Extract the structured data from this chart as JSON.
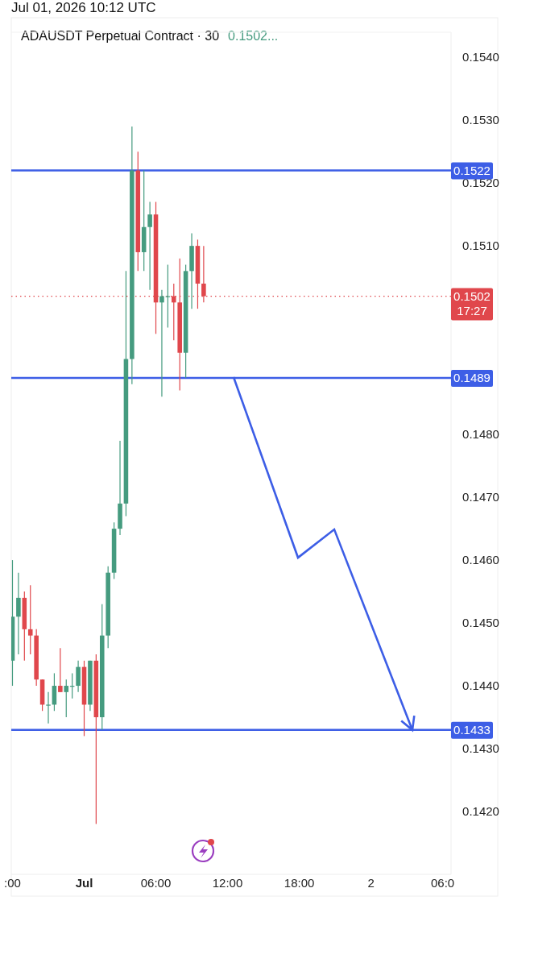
{
  "chart_data": {
    "type": "candlestick",
    "title": "Jul 01, 2026 10:12 UTC",
    "subtitle": "ADAUSDT Perpetual Contract · 30",
    "annotations": [
      "0.1502..."
    ],
    "x": [
      "2026-06-30T18:00",
      "2026-06-30T18:30",
      "2026-06-30T19:00",
      "2026-06-30T19:30",
      "2026-06-30T20:00",
      "2026-06-30T20:30",
      "2026-06-30T21:00",
      "2026-06-30T21:30",
      "2026-06-30T22:00",
      "2026-06-30T22:30",
      "2026-06-30T23:00",
      "2026-06-30T23:30",
      "2026-07-01T00:00",
      "2026-07-01T00:30",
      "2026-07-01T01:00",
      "2026-07-01T01:30",
      "2026-07-01T02:00",
      "2026-07-01T02:30",
      "2026-07-01T03:00",
      "2026-07-01T03:30",
      "2026-07-01T04:00",
      "2026-07-01T04:30",
      "2026-07-01T05:00",
      "2026-07-01T05:30",
      "2026-07-01T06:00",
      "2026-07-01T06:30",
      "2026-07-01T07:00",
      "2026-07-01T07:30",
      "2026-07-01T08:00",
      "2026-07-01T08:30",
      "2026-07-01T09:00",
      "2026-07-01T09:30",
      "2026-07-01T10:00"
    ],
    "ohlc": [
      [
        0.1444,
        0.146,
        0.144,
        0.1451
      ],
      [
        0.1451,
        0.1458,
        0.1445,
        0.1454
      ],
      [
        0.1454,
        0.1455,
        0.1444,
        0.1449
      ],
      [
        0.1449,
        0.1456,
        0.1445,
        0.1448
      ],
      [
        0.1448,
        0.1449,
        0.144,
        0.1441
      ],
      [
        0.1441,
        0.1441,
        0.1436,
        0.1437
      ],
      [
        0.1437,
        0.1439,
        0.1434,
        0.1437
      ],
      [
        0.1437,
        0.1442,
        0.1436,
        0.144
      ],
      [
        0.144,
        0.1446,
        0.1439,
        0.1439
      ],
      [
        0.1439,
        0.1441,
        0.1435,
        0.144
      ],
      [
        0.144,
        0.1442,
        0.1438,
        0.144
      ],
      [
        0.144,
        0.1444,
        0.1439,
        0.1443
      ],
      [
        0.1443,
        0.1444,
        0.1432,
        0.1437
      ],
      [
        0.1437,
        0.1444,
        0.1436,
        0.1444
      ],
      [
        0.1444,
        0.1445,
        0.1418,
        0.1435
      ],
      [
        0.1435,
        0.1453,
        0.1433,
        0.1448
      ],
      [
        0.1448,
        0.1459,
        0.1446,
        0.1458
      ],
      [
        0.1458,
        0.1466,
        0.1457,
        0.1465
      ],
      [
        0.1465,
        0.1479,
        0.1464,
        0.1469
      ],
      [
        0.1469,
        0.1506,
        0.1467,
        0.1492
      ],
      [
        0.1492,
        0.1529,
        0.1488,
        0.1522
      ],
      [
        0.1522,
        0.1525,
        0.1506,
        0.1509
      ],
      [
        0.1509,
        0.1522,
        0.1506,
        0.1513
      ],
      [
        0.1513,
        0.1517,
        0.1503,
        0.1515
      ],
      [
        0.1515,
        0.1517,
        0.1496,
        0.1501
      ],
      [
        0.1501,
        0.1503,
        0.1486,
        0.1502
      ],
      [
        0.1502,
        0.1507,
        0.1497,
        0.1502
      ],
      [
        0.1502,
        0.1504,
        0.1495,
        0.1501
      ],
      [
        0.1501,
        0.1508,
        0.1487,
        0.1493
      ],
      [
        0.1493,
        0.1507,
        0.1489,
        0.1506
      ],
      [
        0.1506,
        0.1512,
        0.15,
        0.151
      ],
      [
        0.151,
        0.1511,
        0.15,
        0.1504
      ],
      [
        0.1504,
        0.151,
        0.1501,
        0.1502
      ]
    ],
    "ref_lines": [
      {
        "axis": "y",
        "value": 0.1522,
        "label": "0.1522",
        "color": "#3d5ee6",
        "line_style": "solid"
      },
      {
        "axis": "y",
        "value": 0.1489,
        "label": "0.1489",
        "color": "#3d5ee6",
        "line_style": "solid"
      },
      {
        "axis": "y",
        "value": 0.1433,
        "label": "0.1433",
        "color": "#3d5ee6",
        "line_style": "solid"
      },
      {
        "axis": "y",
        "value": 0.1502,
        "label": "0.1502 17:27",
        "color": "#e0474c",
        "line_style": "dotted"
      }
    ],
    "xlim": [
      "2026-06-30T17:54",
      "2026-07-02T06:42"
    ],
    "xticks": [
      {
        "value": "2026-06-30T18:00",
        "label": ":00"
      },
      {
        "value": "2026-07-01T00:00",
        "label": "Jul"
      },
      {
        "value": "2026-07-01T06:00",
        "label": "06:00"
      },
      {
        "value": "2026-07-01T12:00",
        "label": "12:00"
      },
      {
        "value": "2026-07-01T18:00",
        "label": "18:00"
      },
      {
        "value": "2026-07-02T00:00",
        "label": "2"
      },
      {
        "value": "2026-07-02T06:00",
        "label": "06:0"
      }
    ],
    "ylim": [
      0.141,
      0.1544
    ],
    "yticks": [
      {
        "value": 0.142,
        "label": "0.1420"
      },
      {
        "value": 0.143,
        "label": "0.1430"
      },
      {
        "value": 0.144,
        "label": "0.1440"
      },
      {
        "value": 0.145,
        "label": "0.1450"
      },
      {
        "value": 0.146,
        "label": "0.1460"
      },
      {
        "value": 0.147,
        "label": "0.1470"
      },
      {
        "value": 0.148,
        "label": "0.1480"
      },
      {
        "value": 0.151,
        "label": "0.1510"
      },
      {
        "value": 0.152,
        "label": "0.1520"
      },
      {
        "value": 0.153,
        "label": "0.1530"
      },
      {
        "value": 0.154,
        "label": "0.1540"
      }
    ],
    "grid": false
  }
}
